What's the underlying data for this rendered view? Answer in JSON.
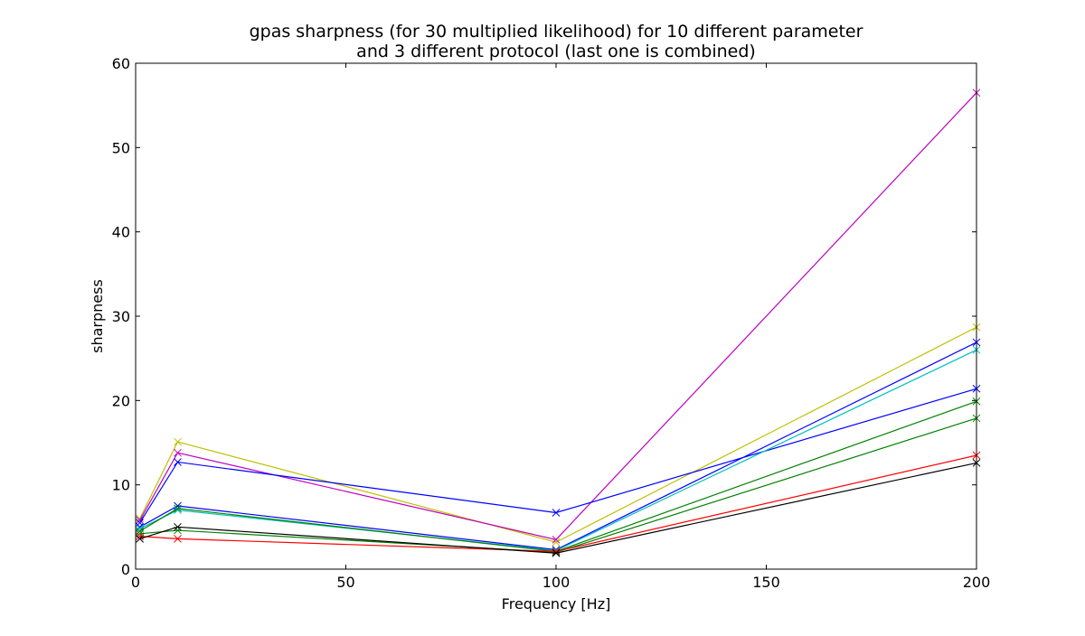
{
  "chart_data": {
    "type": "line",
    "title_lines": [
      "gpas sharpness (for 30 multiplied likelihood) for 10 different parameter",
      "and 3 different protocol (last one is combined)"
    ],
    "xlabel": "Frequency [Hz]",
    "ylabel": "sharpness",
    "xlim": [
      0,
      200
    ],
    "ylim": [
      0,
      60
    ],
    "xticks": [
      0,
      50,
      100,
      150,
      200
    ],
    "yticks": [
      0,
      10,
      20,
      30,
      40,
      50,
      60
    ],
    "grid": false,
    "marker": "x",
    "x": [
      1,
      10,
      100,
      200
    ],
    "series": [
      {
        "color": "#bfbf00",
        "values": [
          6.0,
          15.1,
          3.2,
          28.7
        ]
      },
      {
        "color": "#bf00bf",
        "values": [
          5.8,
          13.8,
          3.5,
          56.5
        ]
      },
      {
        "color": "#0000ff",
        "values": [
          5.5,
          12.7,
          6.7,
          21.4
        ]
      },
      {
        "color": "#0000ff",
        "values": [
          5.0,
          7.5,
          2.3,
          26.9
        ]
      },
      {
        "color": "#00bfbf",
        "values": [
          4.8,
          7.0,
          2.2,
          26.0
        ]
      },
      {
        "color": "#008000",
        "values": [
          4.5,
          7.2,
          2.1,
          19.9
        ]
      },
      {
        "color": "#008000",
        "values": [
          4.2,
          4.6,
          2.0,
          17.9
        ]
      },
      {
        "color": "#ff0000",
        "values": [
          3.9,
          3.6,
          2.1,
          13.5
        ]
      },
      {
        "color": "#000000",
        "values": [
          3.6,
          5.0,
          1.9,
          12.6
        ]
      }
    ]
  }
}
